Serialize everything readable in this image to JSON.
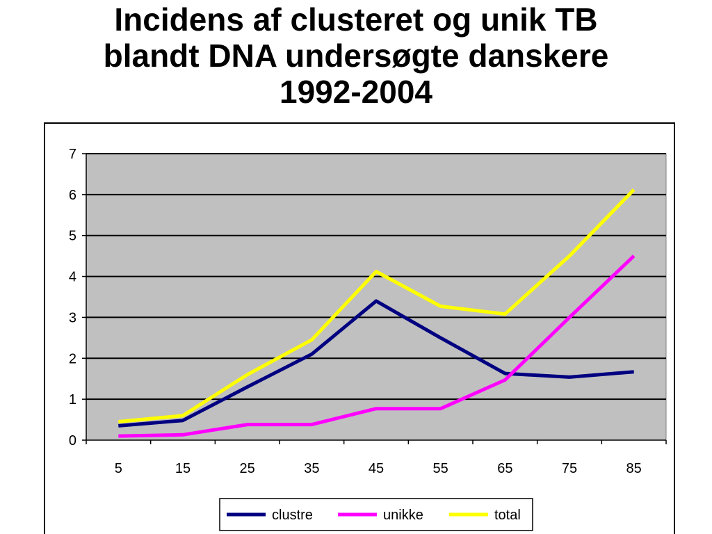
{
  "chart_data": {
    "type": "line",
    "title": [
      "Incidens af clusteret og unik TB",
      "blandt DNA undersøgte danskere",
      "1992-2004"
    ],
    "xlabel": "",
    "ylabel": "",
    "x": [
      "5",
      "15",
      "25",
      "35",
      "45",
      "55",
      "65",
      "75",
      "85"
    ],
    "ylim": [
      0,
      7
    ],
    "yticks": [
      "0",
      "1",
      "2",
      "3",
      "4",
      "5",
      "6",
      "7"
    ],
    "grid": true,
    "legend_position": "bottom",
    "plot_background": "#c0c0c0",
    "series": [
      {
        "name": "clustre",
        "color": "#000080",
        "values": [
          0.35,
          0.48,
          1.3,
          2.1,
          3.4,
          2.5,
          1.63,
          1.54,
          1.67
        ]
      },
      {
        "name": "unikke",
        "color": "#ff00ff",
        "values": [
          0.1,
          0.13,
          0.38,
          0.38,
          0.77,
          0.77,
          1.47,
          3.0,
          4.5
        ]
      },
      {
        "name": "total",
        "color": "#ffff00",
        "values": [
          0.45,
          0.6,
          1.6,
          2.45,
          4.12,
          3.27,
          3.08,
          4.5,
          6.12
        ]
      }
    ]
  }
}
